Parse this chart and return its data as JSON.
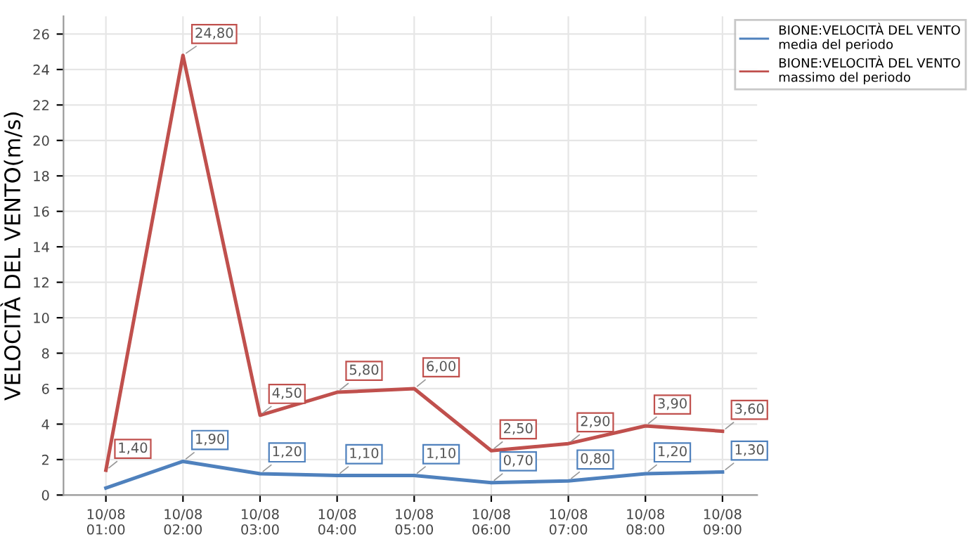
{
  "chart_data": {
    "type": "line",
    "ylabel": "VELOCITÀ DEL VENTO(m/s)",
    "categories": [
      "10/08\n01:00",
      "10/08\n02:00",
      "10/08\n03:00",
      "10/08\n04:00",
      "10/08\n05:00",
      "10/08\n06:00",
      "10/08\n07:00",
      "10/08\n08:00",
      "10/08\n09:00"
    ],
    "series": [
      {
        "name": "BIONE:VELOCITÀ DEL VENTO\nmedia del periodo",
        "color": "#4f81bd",
        "values": [
          0.4,
          1.9,
          1.2,
          1.1,
          1.1,
          0.7,
          0.8,
          1.2,
          1.3
        ],
        "value_labels": [
          null,
          "1,90",
          "1,20",
          "1,10",
          "1,10",
          "0,70",
          "0,80",
          "1,20",
          "1,30"
        ]
      },
      {
        "name": "BIONE:VELOCITÀ DEL VENTO\nmassimo del periodo",
        "color": "#c0504d",
        "values": [
          1.4,
          24.8,
          4.5,
          5.8,
          6.0,
          2.5,
          2.9,
          3.9,
          3.6
        ],
        "value_labels": [
          "1,40",
          "24,80",
          "4,50",
          "5,80",
          "6,00",
          "2,50",
          "2,90",
          "3,90",
          "3,60"
        ]
      }
    ],
    "ylim": [
      0,
      27
    ],
    "yticks": [
      0,
      2,
      4,
      6,
      8,
      10,
      12,
      14,
      16,
      18,
      20,
      22,
      24,
      26
    ],
    "grid": true,
    "legend": "top right",
    "marker": "none",
    "line_style": "solid"
  }
}
